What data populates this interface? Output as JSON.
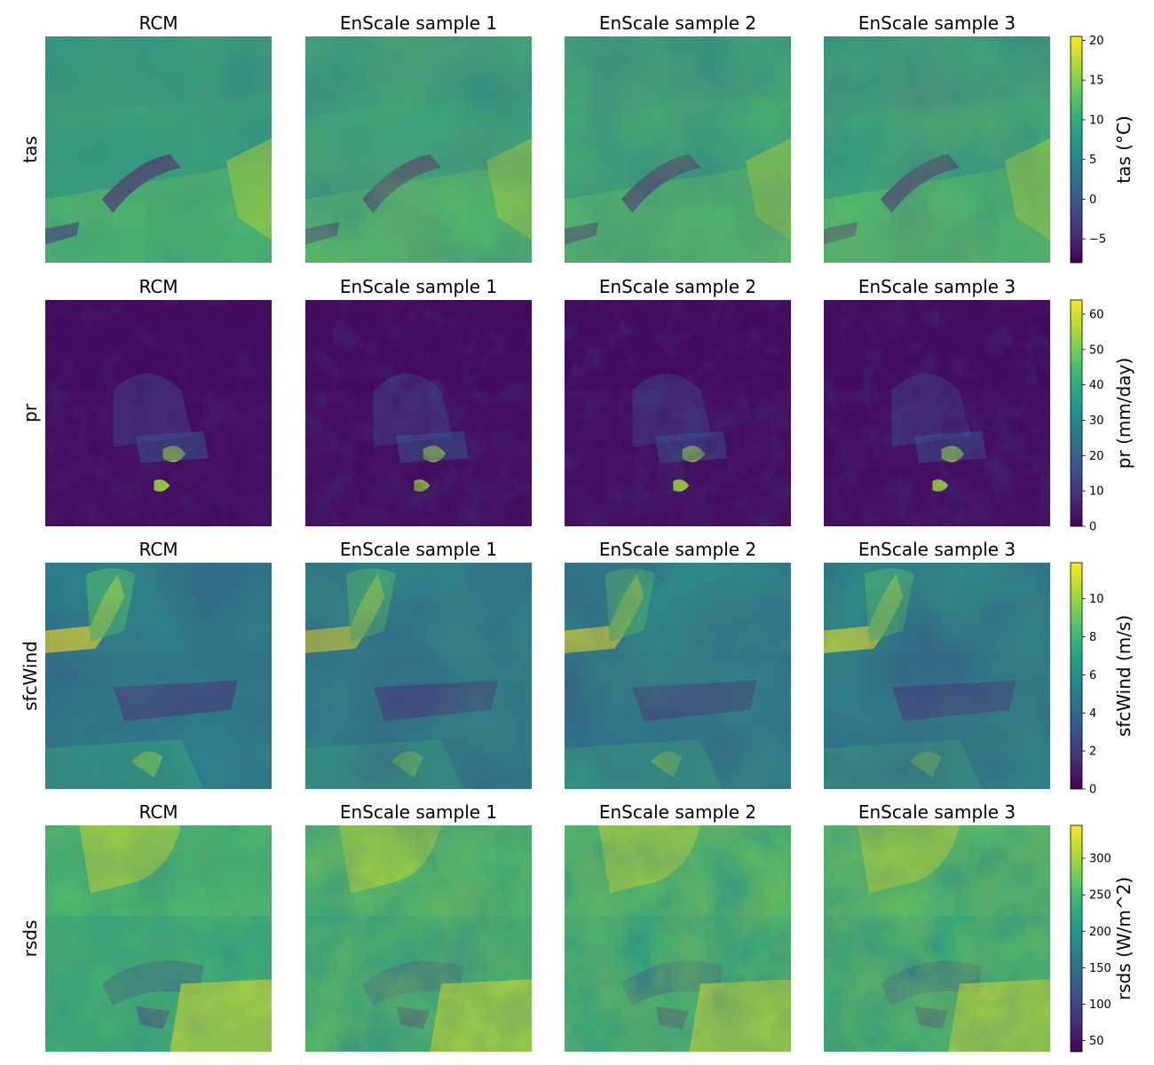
{
  "chart_data": {
    "type": "heatmap",
    "layout": "4 rows x 4 columns of map panels, one colorbar per row",
    "columns": [
      "RCM",
      "EnScale sample 1",
      "EnScale sample 2",
      "EnScale sample 3"
    ],
    "colormap": "viridis",
    "colormap_stops": [
      "#440154",
      "#472d7b",
      "#3b528b",
      "#2c728e",
      "#21918c",
      "#28ae80",
      "#5ec962",
      "#addc30",
      "#fde725"
    ],
    "rows": [
      {
        "variable": "tas",
        "colorbar_label": "tas (°C)",
        "vmin": -8,
        "vmax": 20.5,
        "ticks": [
          -5,
          0,
          5,
          10,
          15,
          20
        ],
        "tick_labels": [
          "−5",
          "0",
          "5",
          "10",
          "15",
          "20"
        ]
      },
      {
        "variable": "pr",
        "colorbar_label": "pr (mm/day)",
        "vmin": 0,
        "vmax": 64,
        "ticks": [
          0,
          10,
          20,
          30,
          40,
          50,
          60
        ],
        "tick_labels": [
          "0",
          "10",
          "20",
          "30",
          "40",
          "50",
          "60"
        ]
      },
      {
        "variable": "sfcWind",
        "colorbar_label": "sfcWind (m/s)",
        "vmin": 0,
        "vmax": 11.9,
        "ticks": [
          0,
          2,
          4,
          6,
          8,
          10
        ],
        "tick_labels": [
          "0",
          "2",
          "4",
          "6",
          "8",
          "10"
        ]
      },
      {
        "variable": "rsds",
        "colorbar_label": "rsds (W/m^2)",
        "vmin": 35,
        "vmax": 345,
        "ticks": [
          50,
          100,
          150,
          200,
          250,
          300
        ],
        "tick_labels": [
          "50",
          "100",
          "150",
          "200",
          "250",
          "300"
        ]
      }
    ]
  }
}
